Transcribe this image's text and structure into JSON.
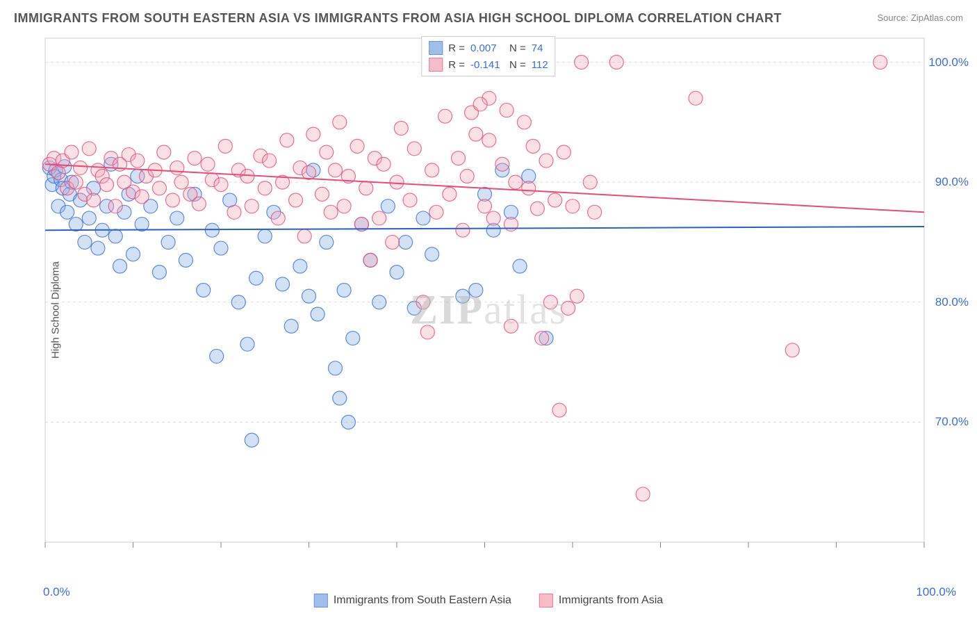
{
  "title": "IMMIGRANTS FROM SOUTH EASTERN ASIA VS IMMIGRANTS FROM ASIA HIGH SCHOOL DIPLOMA CORRELATION CHART",
  "source_label": "Source: ZipAtlas.com",
  "ylabel": "High School Diploma",
  "watermark_a": "ZIP",
  "watermark_b": "atlas",
  "chart": {
    "type": "scatter",
    "background_color": "#ffffff",
    "plot_border_color": "#cccccc",
    "grid_color": "#dddddd",
    "grid_dash": "4,4",
    "axis_tick_color": "#888888",
    "marker_radius": 10,
    "marker_stroke_width": 1.2,
    "marker_fill_opacity": 0.35,
    "trend_line_width": 2,
    "x_axis": {
      "lim": [
        0,
        100
      ],
      "ticks": [
        0,
        10,
        20,
        30,
        40,
        50,
        60,
        70,
        80,
        90,
        100
      ],
      "start_label": "0.0%",
      "end_label": "100.0%",
      "label_color": "#3b6fd6"
    },
    "y_axis": {
      "lim": [
        60,
        102
      ],
      "grid_ticks": [
        70,
        80,
        90,
        100
      ],
      "labels": [
        "70.0%",
        "80.0%",
        "90.0%",
        "100.0%"
      ],
      "label_color": "#3b6fd6"
    },
    "legend_top": {
      "series1": {
        "r_label": "R =",
        "r_value": "0.007",
        "n_label": "N =",
        "n_value": "74"
      },
      "series2": {
        "r_label": "R =",
        "r_value": "-0.141",
        "n_label": "N =",
        "n_value": "112"
      }
    },
    "legend_bottom": {
      "series1_label": "Immigrants from South Eastern Asia",
      "series2_label": "Immigrants from Asia"
    },
    "series": [
      {
        "name": "Immigrants from South Eastern Asia",
        "fill_color": "#7fa9e6",
        "stroke_color": "#3b6fd6",
        "trend": {
          "y_at_x0": 86.0,
          "y_at_x100": 86.3,
          "color": "#2d5fc4"
        },
        "points": [
          [
            0.5,
            91.2
          ],
          [
            0.8,
            89.8
          ],
          [
            1.0,
            90.5
          ],
          [
            1.2,
            91.0
          ],
          [
            1.5,
            88.0
          ],
          [
            1.8,
            90.2
          ],
          [
            2.0,
            89.5
          ],
          [
            2.2,
            91.3
          ],
          [
            2.5,
            87.5
          ],
          [
            2.8,
            89.0
          ],
          [
            3.0,
            90.0
          ],
          [
            3.5,
            86.5
          ],
          [
            4.0,
            88.5
          ],
          [
            4.5,
            85.0
          ],
          [
            5.0,
            87.0
          ],
          [
            5.5,
            89.5
          ],
          [
            6.0,
            84.5
          ],
          [
            6.5,
            86.0
          ],
          [
            7.0,
            88.0
          ],
          [
            7.5,
            91.5
          ],
          [
            8.0,
            85.5
          ],
          [
            8.5,
            83.0
          ],
          [
            9.0,
            87.5
          ],
          [
            9.5,
            89.0
          ],
          [
            10.0,
            84.0
          ],
          [
            10.5,
            90.5
          ],
          [
            11.0,
            86.5
          ],
          [
            12.0,
            88.0
          ],
          [
            13.0,
            82.5
          ],
          [
            14.0,
            85.0
          ],
          [
            15.0,
            87.0
          ],
          [
            16.0,
            83.5
          ],
          [
            17.0,
            89.0
          ],
          [
            18.0,
            81.0
          ],
          [
            19.0,
            86.0
          ],
          [
            20.0,
            84.5
          ],
          [
            21.0,
            88.5
          ],
          [
            22.0,
            80.0
          ],
          [
            23.0,
            76.5
          ],
          [
            24.0,
            82.0
          ],
          [
            25.0,
            85.5
          ],
          [
            26.0,
            87.5
          ],
          [
            27.0,
            81.5
          ],
          [
            28.0,
            78.0
          ],
          [
            29.0,
            83.0
          ],
          [
            30.0,
            80.5
          ],
          [
            30.5,
            91.0
          ],
          [
            31.0,
            79.0
          ],
          [
            32.0,
            85.0
          ],
          [
            33.0,
            74.5
          ],
          [
            34.0,
            81.0
          ],
          [
            35.0,
            77.0
          ],
          [
            33.5,
            72.0
          ],
          [
            34.5,
            70.0
          ],
          [
            36.0,
            86.5
          ],
          [
            37.0,
            83.5
          ],
          [
            38.0,
            80.0
          ],
          [
            39.0,
            88.0
          ],
          [
            40.0,
            82.5
          ],
          [
            41.0,
            85.0
          ],
          [
            42.0,
            79.5
          ],
          [
            43.0,
            87.0
          ],
          [
            44.0,
            84.0
          ],
          [
            19.5,
            75.5
          ],
          [
            23.5,
            68.5
          ],
          [
            49.0,
            81.0
          ],
          [
            50.0,
            89.0
          ],
          [
            51.0,
            86.0
          ],
          [
            52.0,
            91.0
          ],
          [
            53.0,
            87.5
          ],
          [
            54.0,
            83.0
          ],
          [
            55.0,
            90.5
          ],
          [
            57.0,
            77.0
          ],
          [
            47.5,
            80.5
          ]
        ]
      },
      {
        "name": "Immigrants from Asia",
        "fill_color": "#f4a6b8",
        "stroke_color": "#e84c76",
        "trend": {
          "y_at_x0": 91.5,
          "y_at_x100": 87.5,
          "color": "#e84c76"
        },
        "points": [
          [
            0.5,
            91.5
          ],
          [
            1.0,
            92.0
          ],
          [
            1.5,
            90.8
          ],
          [
            2.0,
            91.8
          ],
          [
            2.5,
            89.5
          ],
          [
            3.0,
            92.5
          ],
          [
            3.5,
            90.0
          ],
          [
            4.0,
            91.2
          ],
          [
            4.5,
            89.0
          ],
          [
            5.0,
            92.8
          ],
          [
            5.5,
            88.5
          ],
          [
            6.0,
            91.0
          ],
          [
            6.5,
            90.5
          ],
          [
            7.0,
            89.8
          ],
          [
            7.5,
            92.0
          ],
          [
            8.0,
            88.0
          ],
          [
            8.5,
            91.5
          ],
          [
            9.0,
            90.0
          ],
          [
            9.5,
            92.3
          ],
          [
            10.0,
            89.2
          ],
          [
            10.5,
            91.8
          ],
          [
            11.0,
            88.8
          ],
          [
            11.5,
            90.5
          ],
          [
            12.5,
            91.0
          ],
          [
            13.0,
            89.5
          ],
          [
            13.5,
            92.5
          ],
          [
            14.5,
            88.5
          ],
          [
            15.0,
            91.2
          ],
          [
            15.5,
            90.0
          ],
          [
            16.5,
            89.0
          ],
          [
            17.0,
            92.0
          ],
          [
            17.5,
            88.2
          ],
          [
            18.5,
            91.5
          ],
          [
            19.0,
            90.2
          ],
          [
            20.0,
            89.8
          ],
          [
            20.5,
            93.0
          ],
          [
            21.5,
            87.5
          ],
          [
            22.0,
            91.0
          ],
          [
            23.0,
            90.5
          ],
          [
            23.5,
            88.0
          ],
          [
            24.5,
            92.2
          ],
          [
            25.0,
            89.5
          ],
          [
            25.5,
            91.8
          ],
          [
            26.5,
            87.0
          ],
          [
            27.0,
            90.0
          ],
          [
            27.5,
            93.5
          ],
          [
            28.5,
            88.5
          ],
          [
            29.0,
            91.2
          ],
          [
            29.5,
            85.5
          ],
          [
            30.0,
            90.8
          ],
          [
            30.5,
            94.0
          ],
          [
            31.5,
            89.0
          ],
          [
            32.0,
            92.5
          ],
          [
            32.5,
            87.5
          ],
          [
            33.0,
            91.0
          ],
          [
            33.5,
            95.0
          ],
          [
            34.0,
            88.0
          ],
          [
            34.5,
            90.5
          ],
          [
            35.5,
            93.0
          ],
          [
            36.0,
            86.5
          ],
          [
            36.5,
            89.5
          ],
          [
            37.5,
            92.0
          ],
          [
            38.0,
            87.0
          ],
          [
            38.5,
            91.5
          ],
          [
            39.5,
            85.0
          ],
          [
            40.0,
            90.0
          ],
          [
            40.5,
            94.5
          ],
          [
            41.5,
            88.5
          ],
          [
            42.0,
            92.8
          ],
          [
            43.5,
            77.5
          ],
          [
            44.0,
            91.0
          ],
          [
            44.5,
            87.5
          ],
          [
            45.5,
            95.5
          ],
          [
            46.0,
            89.0
          ],
          [
            47.0,
            92.0
          ],
          [
            47.5,
            86.0
          ],
          [
            48.0,
            90.5
          ],
          [
            48.5,
            95.8
          ],
          [
            49.0,
            94.0
          ],
          [
            50.0,
            88.0
          ],
          [
            50.5,
            93.5
          ],
          [
            51.0,
            87.0
          ],
          [
            52.0,
            91.5
          ],
          [
            52.5,
            96.0
          ],
          [
            53.0,
            86.5
          ],
          [
            53.5,
            90.0
          ],
          [
            54.5,
            95.0
          ],
          [
            55.0,
            89.5
          ],
          [
            55.5,
            93.0
          ],
          [
            56.0,
            87.8
          ],
          [
            57.0,
            91.8
          ],
          [
            57.5,
            80.0
          ],
          [
            58.0,
            88.5
          ],
          [
            59.0,
            92.5
          ],
          [
            58.5,
            71.0
          ],
          [
            60.0,
            88.0
          ],
          [
            61.0,
            100.0
          ],
          [
            62.0,
            90.0
          ],
          [
            56.5,
            77.0
          ],
          [
            65.0,
            100.0
          ],
          [
            68.0,
            64.0
          ],
          [
            74.0,
            97.0
          ],
          [
            85.0,
            76.0
          ],
          [
            95.0,
            100.0
          ],
          [
            60.5,
            80.5
          ],
          [
            43.0,
            80.0
          ],
          [
            37.0,
            83.5
          ],
          [
            59.5,
            79.5
          ],
          [
            53.0,
            78.0
          ],
          [
            62.5,
            87.5
          ],
          [
            50.5,
            97.0
          ],
          [
            49.5,
            96.5
          ]
        ]
      }
    ]
  }
}
